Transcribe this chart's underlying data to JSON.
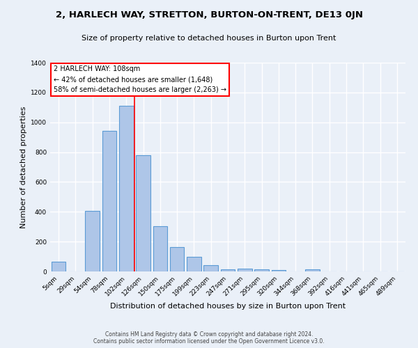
{
  "title": "2, HARLECH WAY, STRETTON, BURTON-ON-TRENT, DE13 0JN",
  "subtitle": "Size of property relative to detached houses in Burton upon Trent",
  "xlabel": "Distribution of detached houses by size in Burton upon Trent",
  "ylabel": "Number of detached properties",
  "categories": [
    "5sqm",
    "29sqm",
    "54sqm",
    "78sqm",
    "102sqm",
    "126sqm",
    "150sqm",
    "175sqm",
    "199sqm",
    "223sqm",
    "247sqm",
    "271sqm",
    "295sqm",
    "320sqm",
    "344sqm",
    "368sqm",
    "392sqm",
    "416sqm",
    "441sqm",
    "465sqm",
    "489sqm"
  ],
  "values": [
    65,
    0,
    405,
    945,
    1110,
    780,
    305,
    165,
    100,
    40,
    15,
    20,
    15,
    10,
    0,
    15,
    0,
    0,
    0,
    0,
    0
  ],
  "bar_color": "#aec6e8",
  "bar_edge_color": "#5b9bd5",
  "background_color": "#eaf0f8",
  "grid_color": "#ffffff",
  "red_line_x": 4.5,
  "annotation_title": "2 HARLECH WAY: 108sqm",
  "annotation_line1": "← 42% of detached houses are smaller (1,648)",
  "annotation_line2": "58% of semi-detached houses are larger (2,263) →",
  "footer_line1": "Contains HM Land Registry data © Crown copyright and database right 2024.",
  "footer_line2": "Contains public sector information licensed under the Open Government Licence v3.0.",
  "ylim": [
    0,
    1400
  ],
  "yticks": [
    0,
    200,
    400,
    600,
    800,
    1000,
    1200,
    1400
  ]
}
